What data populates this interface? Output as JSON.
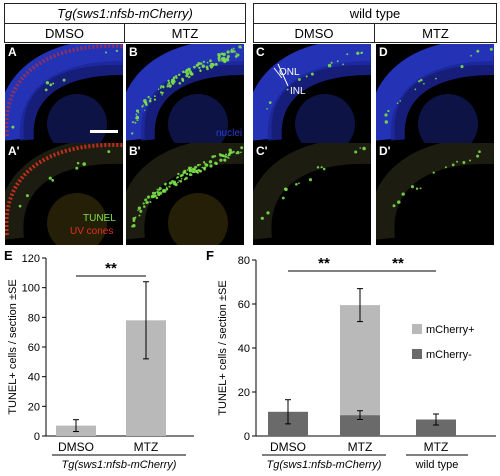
{
  "headers": {
    "transgenic": "Tg(sws1:nfsb-mCherry)",
    "wildtype": "wild type",
    "cond_dmso_a": "DMSO",
    "cond_mtz_b": "MTZ",
    "cond_dmso_c": "DMSO",
    "cond_mtz_d": "MTZ"
  },
  "panels": {
    "A": "A",
    "B": "B",
    "C": "C",
    "D": "D",
    "A2": "A'",
    "B2": "B'",
    "C2": "C'",
    "D2": "D'"
  },
  "annotations": {
    "onl": "ONL",
    "inl": "INL",
    "nuclei": "nuclei",
    "tunel": "TUNEL",
    "uvcones": "UV cones"
  },
  "colors": {
    "nuclei": "#2a3cd6",
    "tunel": "#7be04a",
    "uvcones": "#e0301e",
    "bar_light": "#b9b9b9",
    "bar_dark": "#6a6a6a"
  },
  "chart_data": [
    {
      "type": "bar",
      "letter": "E",
      "ylabel": "TUNEL+ cells / section ±SE",
      "categories": [
        "DMSO",
        "MTZ"
      ],
      "values": [
        7,
        78
      ],
      "errors": [
        4,
        26
      ],
      "ylim": [
        0,
        120
      ],
      "yticks": [
        0,
        20,
        40,
        60,
        80,
        100,
        120
      ],
      "group_label": "Tg(sws1:nfsb-mCherry)",
      "significance": "**"
    },
    {
      "type": "bar",
      "letter": "F",
      "ylabel": "TUNEL+ cells / section ±SE",
      "categories": [
        "DMSO",
        "MTZ",
        "MTZ"
      ],
      "series": [
        {
          "name": "mCherry-",
          "values": [
            11,
            9.5,
            7.5
          ],
          "errors": [
            5.5,
            2,
            2.5
          ]
        },
        {
          "name": "mCherry+",
          "values": [
            0,
            50,
            0
          ],
          "errors": [
            0,
            7.5,
            0
          ]
        }
      ],
      "ylim": [
        0,
        80
      ],
      "yticks": [
        0,
        20,
        40,
        60,
        80
      ],
      "group_labels": [
        "Tg(sws1:nfsb-mCherry)",
        "wild type"
      ],
      "significance": [
        "**",
        "**"
      ]
    }
  ]
}
